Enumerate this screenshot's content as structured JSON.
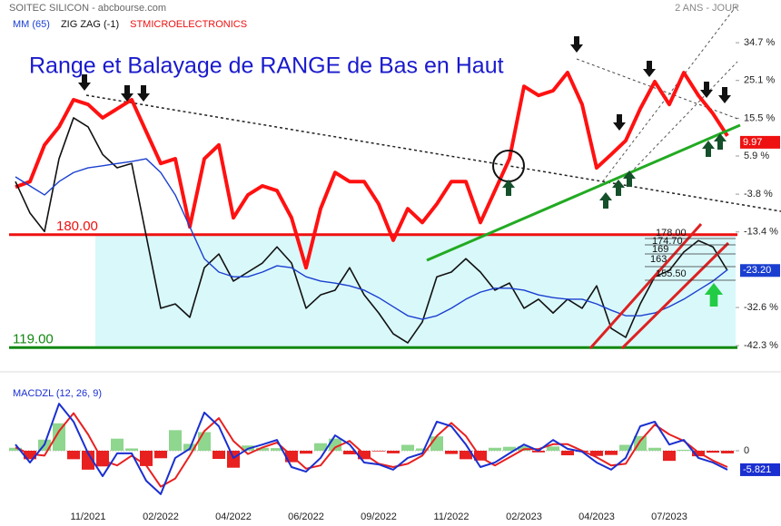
{
  "chart_data": [
    {
      "type": "line",
      "title": "Range et Balayage de RANGE de Bas en Haut",
      "source": "SOITEC SILICON - abcbourse.com",
      "period": "2 ANS - JOUR",
      "legend": [
        {
          "label": "MM (65)",
          "color": "#1a3fd0"
        },
        {
          "label": "ZIG ZAG (-1)",
          "color": "#111111"
        },
        {
          "label": "STMICROELECTRONICS",
          "color": "#ee1111"
        }
      ],
      "categories": [
        null,
        null,
        null,
        null,
        null,
        "11/2021",
        null,
        null,
        null,
        null,
        "02/2022",
        null,
        null,
        null,
        null,
        "04/2022",
        null,
        null,
        null,
        null,
        "06/2022",
        null,
        null,
        null,
        null,
        "09/2022",
        null,
        null,
        null,
        null,
        "11/2022",
        null,
        null,
        null,
        null,
        "02/2023",
        null,
        null,
        null,
        null,
        "04/2023",
        null,
        null,
        null,
        null,
        "07/2023",
        null,
        null,
        null,
        null
      ],
      "ylim": [
        -45.5,
        44.4
      ],
      "yticks": [
        {
          "value": 34.7,
          "label": "34.7 %"
        },
        {
          "value": 25.1,
          "label": "25.1 %"
        },
        {
          "value": 15.5,
          "label": "15.5 %"
        },
        {
          "value": 5.9,
          "label": "5.9 %"
        },
        {
          "value": -3.8,
          "label": "-3.8 %"
        },
        {
          "value": -13.4,
          "label": "-13.4 %"
        },
        {
          "value": -32.6,
          "label": "-32.6 %"
        },
        {
          "value": -42.3,
          "label": "-42.3 %"
        }
      ],
      "hlines": [
        {
          "value": -14.1,
          "label": "180.00",
          "color": "#ee1111"
        },
        {
          "value": -42.8,
          "label": "119.00",
          "color": "#118811"
        }
      ],
      "range_fill": "#d9f8fa",
      "series": [
        {
          "color": "#ff1111",
          "values": [
            -2.0,
            -0.6,
            8.7,
            13.3,
            20.2,
            19.0,
            15.6,
            17.9,
            20.2,
            12.1,
            4.0,
            5.2,
            -12.1,
            5.2,
            8.7,
            -9.8,
            -4.0,
            -1.7,
            -2.9,
            -9.8,
            -22.5,
            -7.5,
            1.7,
            -0.6,
            -0.6,
            -6.3,
            -15.5,
            -7.5,
            -11.0,
            -6.3,
            -0.6,
            -0.6,
            -11.0,
            -2.9,
            5.2,
            23.6,
            21.3,
            22.5,
            27.1,
            19.0,
            2.9,
            6.3,
            9.8,
            17.9,
            24.8,
            19.0,
            27.1,
            21.3,
            16.7,
            11.0
          ]
        },
        {
          "color": "#111111",
          "values": [
            -0.6,
            -8.6,
            -13.3,
            5.2,
            15.6,
            13.3,
            6.3,
            2.9,
            4.0,
            -14.4,
            -32.8,
            -31.7,
            -35.1,
            -22.5,
            -19.0,
            -25.9,
            -23.6,
            -21.3,
            -17.2,
            -21.3,
            -32.8,
            -29.4,
            -28.2,
            -22.5,
            -29.4,
            -34.0,
            -39.3,
            -41.6,
            -36.3,
            -24.8,
            -23.6,
            -20.2,
            -23.6,
            -28.2,
            -26.4,
            -32.8,
            -30.5,
            -34.0,
            -30.5,
            -32.8,
            -27.1,
            -37.9,
            -40.2,
            -31.7,
            -24.8,
            -23.2,
            -18.5,
            -15.6,
            -17.2,
            -23.2
          ],
          "last_label": "-23.20",
          "label_color": "#1a3fd0"
        },
        {
          "color": "#1a3fd0",
          "values": [
            0.6,
            -1.7,
            -4.0,
            -0.6,
            1.7,
            2.9,
            3.4,
            4.0,
            4.5,
            5.2,
            1.7,
            -4.0,
            -12.1,
            -20.2,
            -23.6,
            -24.8,
            -24.8,
            -23.6,
            -22.0,
            -22.5,
            -24.8,
            -25.9,
            -26.4,
            -27.1,
            -28.2,
            -30.1,
            -32.4,
            -34.7,
            -35.6,
            -34.7,
            -32.8,
            -30.5,
            -28.7,
            -27.7,
            -27.7,
            -28.2,
            -29.4,
            -30.1,
            -30.5,
            -30.5,
            -31.7,
            -33.3,
            -34.7,
            -34.7,
            -34.0,
            -32.4,
            -30.5,
            -28.2,
            -25.9,
            -23.0
          ]
        }
      ],
      "price_label": "9.97",
      "price_label_color": "#ee1111",
      "annotations": [
        "178.00",
        "174.70",
        "169",
        "163",
        "155.50"
      ]
    },
    {
      "type": "line",
      "title": "MACDZL (12, 26, 9)",
      "ylim": [
        -17.5,
        20
      ],
      "yticks": [
        0
      ],
      "series": [
        {
          "type": "bar",
          "pos_color": "#8fd68f",
          "neg_color": "#e82020",
          "values": [
            0.9,
            -2.6,
            3.4,
            8.4,
            -2.6,
            -5.8,
            -4.8,
            3.7,
            0.7,
            -4.7,
            -2.3,
            6.3,
            2.1,
            5.7,
            -2.5,
            -5.2,
            1.6,
            0.9,
            0.8,
            -3.5,
            -0.9,
            2.3,
            3.7,
            -1.1,
            -2.6,
            -0.2,
            -0.8,
            1.8,
            0.7,
            4.4,
            -1.0,
            -2.6,
            -3.0,
            0.9,
            1.2,
            1.4,
            -0.5,
            1.3,
            -1.4,
            -0.3,
            -1.6,
            -1.3,
            1.8,
            4.5,
            0.9,
            -3.1,
            0.3,
            -1.7,
            -0.6,
            -0.821
          ]
        },
        {
          "color": "#e82020",
          "values": [
            1.0,
            -1.0,
            -1.5,
            6.0,
            11.5,
            5.0,
            -3.0,
            -4.5,
            -1.5,
            -4.5,
            -11.0,
            -8.5,
            -1.5,
            6.0,
            10.0,
            3.0,
            -1.0,
            1.0,
            2.5,
            -1.5,
            -5.5,
            -4.5,
            1.0,
            3.0,
            -1.0,
            -4.0,
            -5.0,
            -4.0,
            -1.5,
            4.5,
            8.5,
            4.5,
            -2.0,
            -4.5,
            -2.0,
            0.5,
            0.5,
            2.0,
            2.0,
            0.0,
            -2.0,
            -4.5,
            -4.0,
            3.0,
            8.0,
            5.0,
            3.0,
            -0.5,
            -3.0,
            -5.0
          ]
        },
        {
          "color": "#1a2fd0",
          "values": [
            1.9,
            -3.6,
            1.9,
            14.4,
            8.9,
            -0.8,
            -7.8,
            -0.8,
            -0.8,
            -9.2,
            -13.3,
            -2.2,
            0.6,
            11.7,
            7.5,
            -2.2,
            0.6,
            1.9,
            3.3,
            -5.0,
            -6.4,
            -2.2,
            4.7,
            1.9,
            -3.6,
            -4.2,
            -5.8,
            -2.2,
            -0.8,
            8.9,
            7.5,
            1.9,
            -5.0,
            -3.6,
            -0.8,
            1.9,
            0.0,
            3.3,
            0.6,
            -0.3,
            -3.6,
            -5.8,
            -2.2,
            7.5,
            8.9,
            1.9,
            3.3,
            -2.2,
            -3.6,
            -5.821
          ],
          "last_label": "-5.821",
          "label_color": "#1a2fd0"
        }
      ]
    }
  ]
}
